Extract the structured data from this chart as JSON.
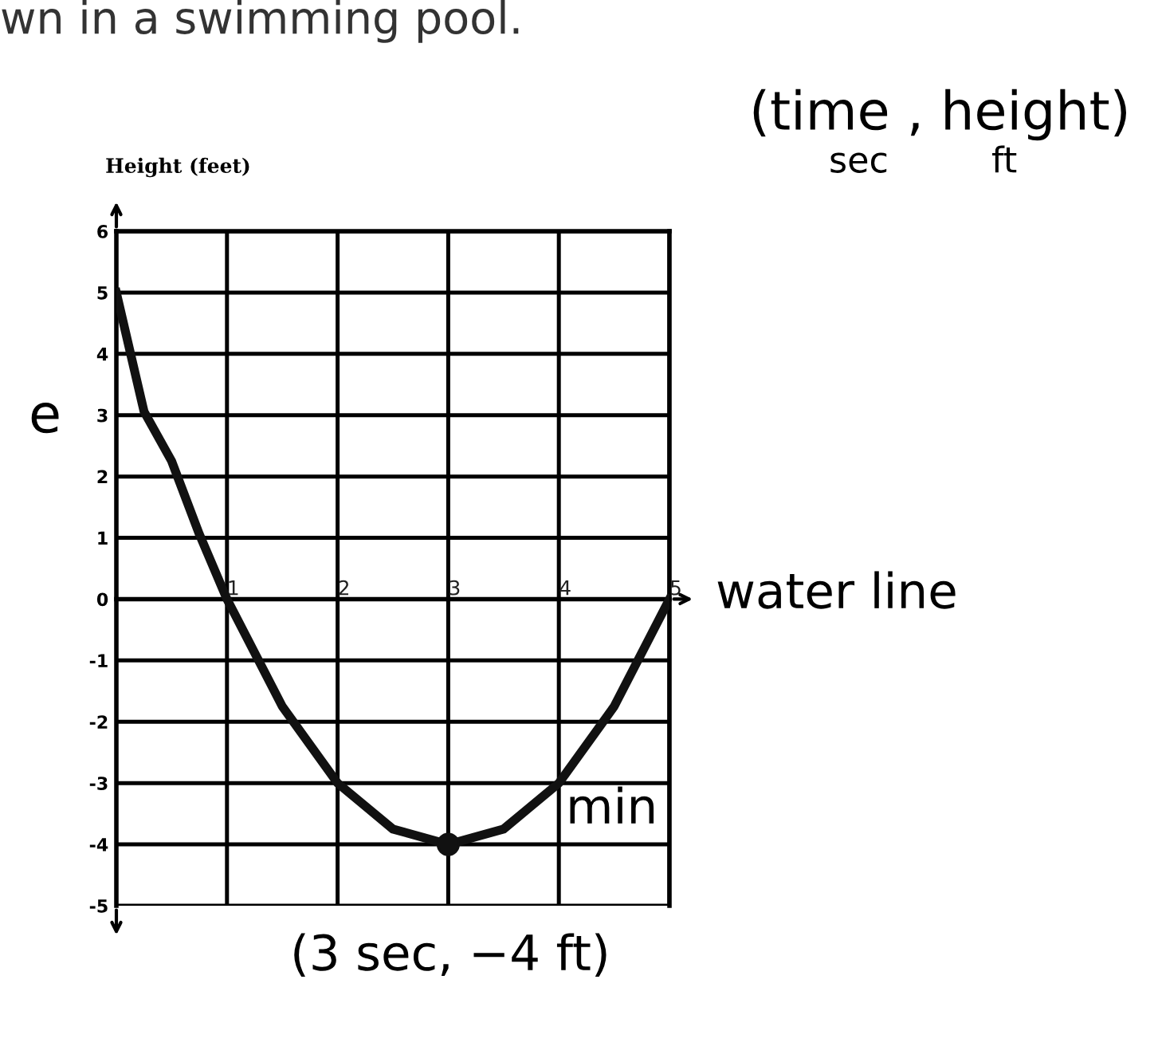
{
  "chart_data": {
    "type": "line",
    "title": "wn in a swimming pool.",
    "ylabel": "Height (feet)",
    "x": [
      0,
      0.25,
      0.5,
      0.75,
      1,
      1.5,
      2,
      2.5,
      3,
      3.5,
      4,
      4.5,
      5
    ],
    "series": [
      {
        "color": "#111111",
        "values": [
          5,
          3.06,
          2.25,
          1.06,
          0,
          -1.75,
          -3,
          -3.75,
          -4,
          -3.75,
          -3,
          -1.75,
          0
        ]
      },
      {
        "type": "scatter",
        "x": [
          3
        ],
        "color": "#111111",
        "values": [
          -4
        ],
        "marker": "circle"
      }
    ],
    "xlim": [
      0,
      5
    ],
    "ylim": [
      -5,
      6
    ],
    "xticks": [
      1,
      2,
      3,
      4,
      5
    ],
    "yticks": [
      -5,
      -4,
      -3,
      -2,
      -1,
      0,
      1,
      2,
      3,
      4,
      5,
      6
    ],
    "grid": true,
    "annotations": [
      "water line",
      "(time , height)",
      "sec",
      "ft",
      "e",
      "min",
      "(3 sec, −4 ft)"
    ]
  }
}
